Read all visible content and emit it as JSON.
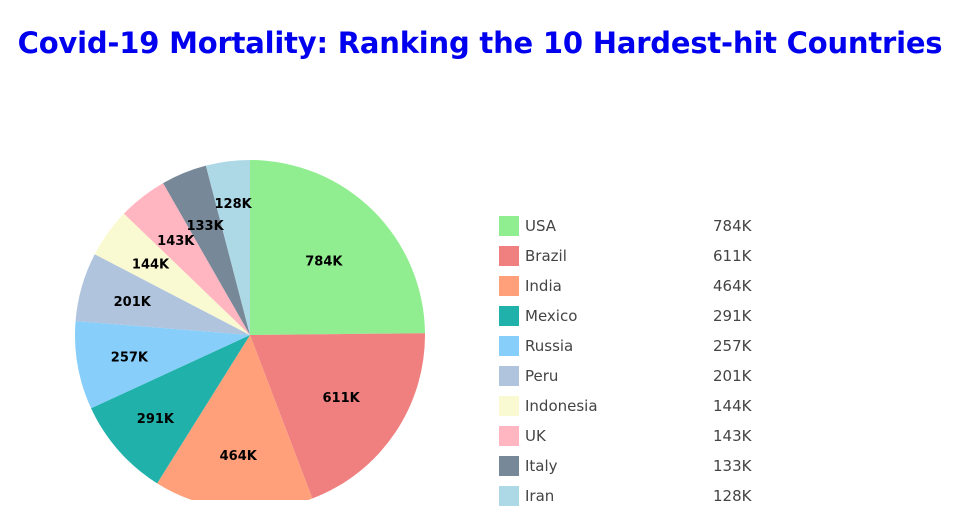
{
  "title": "Covid-19 Mortality: Ranking the 10 Hardest-hit Countries",
  "chart_data": {
    "type": "pie",
    "title": "Covid-19 Mortality: Ranking the 10 Hardest-hit Countries",
    "categories": [
      "USA",
      "Brazil",
      "India",
      "Mexico",
      "Russia",
      "Peru",
      "Indonesia",
      "UK",
      "Italy",
      "Iran"
    ],
    "values": [
      784,
      611,
      464,
      291,
      257,
      201,
      144,
      143,
      133,
      128
    ],
    "labels": [
      "784K",
      "611K",
      "464K",
      "291K",
      "257K",
      "201K",
      "144K",
      "143K",
      "133K",
      "128K"
    ],
    "colors": [
      "#90ee90",
      "#f08080",
      "#ffa07a",
      "#20b2aa",
      "#87cefa",
      "#b0c4de",
      "#fafad2",
      "#ffb6c1",
      "#778899",
      "#add8e6"
    ],
    "start": "12 o'clock",
    "direction": "clockwise",
    "legend_position": "right"
  }
}
